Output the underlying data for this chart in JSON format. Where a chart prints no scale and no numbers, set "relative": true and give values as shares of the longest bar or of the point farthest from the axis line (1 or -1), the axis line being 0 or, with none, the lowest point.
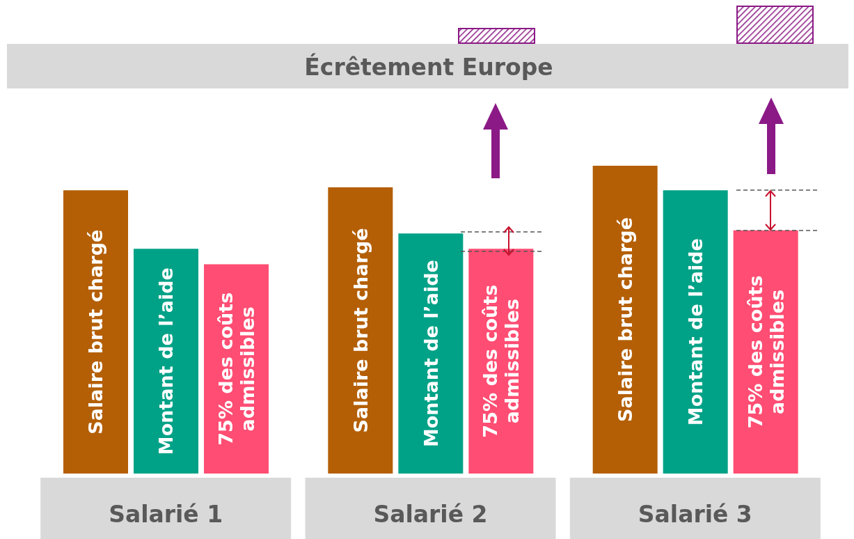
{
  "chart_data": {
    "type": "bar",
    "relative": true,
    "categories": [
      "Salarié 1",
      "Salarié 2",
      "Salarié 3"
    ],
    "series": [
      {
        "name": "Salaire brut chargé",
        "color": "#b45f06",
        "values": [
          0.92,
          0.93,
          1
        ]
      },
      {
        "name": "Montant de l’aide",
        "color": "#00a287",
        "values": [
          0.73,
          0.78,
          0.92
        ]
      },
      {
        "name": "75% des coûts admissibles",
        "color": "#ff4d73",
        "values": [
          0.68,
          0.73,
          0.79
        ]
      }
    ],
    "annotations": [
      "Écrêtement Europe"
    ]
  }
}
